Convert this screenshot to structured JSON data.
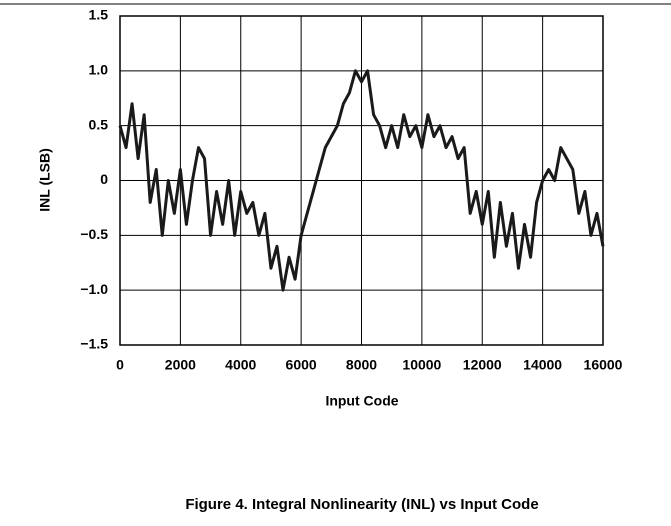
{
  "chart_data": {
    "type": "line",
    "title": "Figure 4. Integral Nonlinearity (INL) vs Input Code",
    "x_label": "Input Code",
    "y_label": "INL (LSB)",
    "xlim": [
      0,
      16000
    ],
    "xticks": [
      0,
      2000,
      4000,
      6000,
      8000,
      10000,
      12000,
      14000,
      16000
    ],
    "ylim": [
      -1.5,
      1.5
    ],
    "yticks": [
      {
        "value": -1.5,
        "label": "−1.5"
      },
      {
        "value": -1,
        "label": "−1.0"
      },
      {
        "value": -0.5,
        "label": "−0.5"
      },
      0,
      0.5,
      {
        "value": 1,
        "label": "1.0"
      },
      1.5
    ],
    "grid": true,
    "x": [
      0,
      200,
      400,
      600,
      800,
      1000,
      1200,
      1400,
      1600,
      1800,
      2000,
      2200,
      2400,
      2600,
      2800,
      3000,
      3200,
      3400,
      3600,
      3800,
      4000,
      4200,
      4400,
      4600,
      4800,
      5000,
      5200,
      5400,
      5600,
      5800,
      6000,
      6200,
      6400,
      6600,
      6800,
      7000,
      7200,
      7400,
      7600,
      7800,
      8000,
      8200,
      8400,
      8600,
      8800,
      9000,
      9200,
      9400,
      9600,
      9800,
      10000,
      10200,
      10400,
      10600,
      10800,
      11000,
      11200,
      11400,
      11600,
      11800,
      12000,
      12200,
      12400,
      12600,
      12800,
      13000,
      13200,
      13400,
      13600,
      13800,
      14000,
      14200,
      14400,
      14600,
      14800,
      15000,
      15200,
      15400,
      15600,
      15800,
      16000
    ],
    "series": [
      {
        "name": "INL",
        "color": "#1a1a1a",
        "values": [
          0.5,
          0.3,
          0.7,
          0.2,
          0.6,
          -0.2,
          0.1,
          -0.5,
          0.0,
          -0.3,
          0.1,
          -0.4,
          0.0,
          0.3,
          0.2,
          -0.5,
          -0.1,
          -0.4,
          0.0,
          -0.5,
          -0.1,
          -0.3,
          -0.2,
          -0.5,
          -0.3,
          -0.8,
          -0.6,
          -1.0,
          -0.7,
          -0.9,
          -0.5,
          -0.3,
          -0.1,
          0.1,
          0.3,
          0.4,
          0.5,
          0.7,
          0.8,
          1.0,
          0.9,
          1.0,
          0.6,
          0.5,
          0.3,
          0.5,
          0.3,
          0.6,
          0.4,
          0.5,
          0.3,
          0.6,
          0.4,
          0.5,
          0.3,
          0.4,
          0.2,
          0.3,
          -0.3,
          -0.1,
          -0.4,
          -0.1,
          -0.7,
          -0.2,
          -0.6,
          -0.3,
          -0.8,
          -0.4,
          -0.7,
          -0.2,
          0.0,
          0.1,
          0.0,
          0.3,
          0.2,
          0.1,
          -0.3,
          -0.1,
          -0.5,
          -0.3,
          -0.6
        ]
      }
    ]
  }
}
